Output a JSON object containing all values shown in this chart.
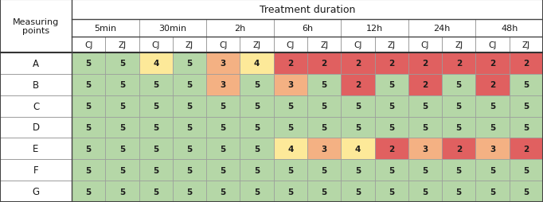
{
  "title": "Treatment duration",
  "row_header": "Measuring\npoints",
  "rows": [
    "A",
    "B",
    "C",
    "D",
    "E",
    "F",
    "G"
  ],
  "time_groups": [
    "5min",
    "30min",
    "2h",
    "6h",
    "12h",
    "24h",
    "48h"
  ],
  "col_headers": [
    "CJ",
    "ZJ",
    "CJ",
    "ZJ",
    "CJ",
    "ZJ",
    "CJ",
    "ZJ",
    "CJ",
    "ZJ",
    "CJ",
    "ZJ",
    "CJ",
    "ZJ"
  ],
  "values": [
    [
      5,
      5,
      4,
      5,
      3,
      4,
      2,
      2,
      2,
      2,
      2,
      2,
      2,
      2
    ],
    [
      5,
      5,
      5,
      5,
      3,
      5,
      3,
      5,
      2,
      5,
      2,
      5,
      2,
      5
    ],
    [
      5,
      5,
      5,
      5,
      5,
      5,
      5,
      5,
      5,
      5,
      5,
      5,
      5,
      5
    ],
    [
      5,
      5,
      5,
      5,
      5,
      5,
      5,
      5,
      5,
      5,
      5,
      5,
      5,
      5
    ],
    [
      5,
      5,
      5,
      5,
      5,
      5,
      4,
      3,
      4,
      2,
      3,
      2,
      3,
      2
    ],
    [
      5,
      5,
      5,
      5,
      5,
      5,
      5,
      5,
      5,
      5,
      5,
      5,
      5,
      5
    ],
    [
      5,
      5,
      5,
      5,
      5,
      5,
      5,
      5,
      5,
      5,
      5,
      5,
      5,
      5
    ]
  ],
  "color_map": {
    "5": "#b5d7a7",
    "4": "#fde999",
    "3": "#f4b183",
    "2": "#e06060"
  },
  "border_color": "#999999",
  "header_bg": "#ffffff",
  "fig_bg": "#ffffff",
  "text_color": "#1a1a1a"
}
